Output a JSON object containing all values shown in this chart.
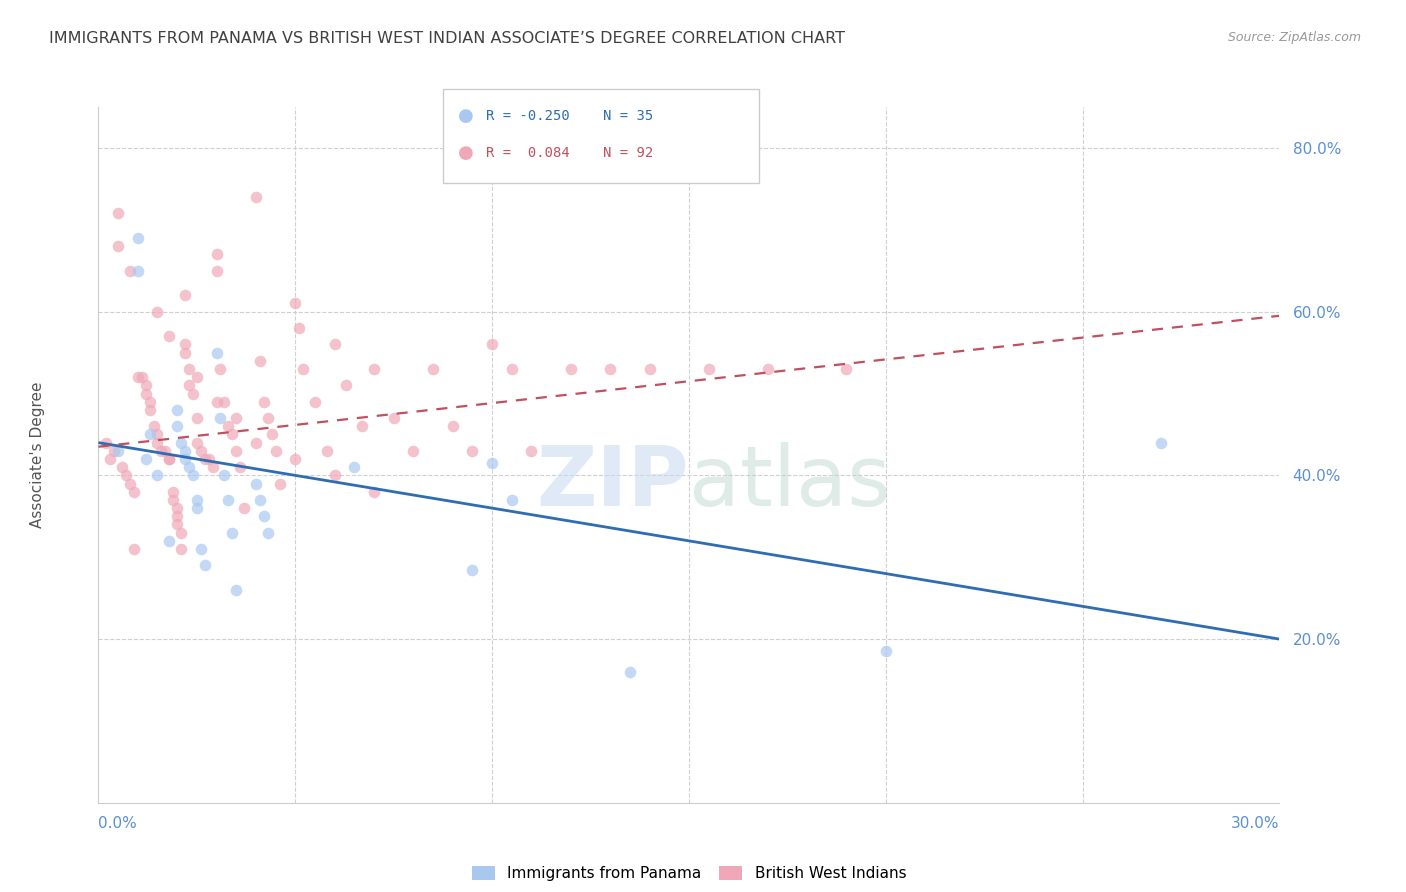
{
  "title": "IMMIGRANTS FROM PANAMA VS BRITISH WEST INDIAN ASSOCIATE’S DEGREE CORRELATION CHART",
  "source": "Source: ZipAtlas.com",
  "ylabel": "Associate's Degree",
  "xlim": [
    0.0,
    0.3
  ],
  "ylim": [
    0.0,
    0.85
  ],
  "ytick_positions_right": [
    0.2,
    0.4,
    0.6,
    0.8
  ],
  "color_panama": "#a8c8f0",
  "color_bwi": "#f0a8b8",
  "color_line_panama": "#2e6db4",
  "color_line_bwi": "#c05060",
  "color_axis_labels": "#5b8fd4",
  "scatter_alpha": 0.7,
  "scatter_size": 70,
  "panama_line_x0": 0.0,
  "panama_line_y0": 0.44,
  "panama_line_x1": 0.3,
  "panama_line_y1": 0.2,
  "bwi_line_x0": 0.0,
  "bwi_line_y0": 0.435,
  "bwi_line_x1": 0.3,
  "bwi_line_y1": 0.595,
  "panama_x": [
    0.005,
    0.01,
    0.01,
    0.012,
    0.013,
    0.015,
    0.018,
    0.02,
    0.02,
    0.021,
    0.022,
    0.022,
    0.023,
    0.024,
    0.025,
    0.025,
    0.026,
    0.027,
    0.03,
    0.031,
    0.032,
    0.033,
    0.034,
    0.035,
    0.04,
    0.041,
    0.042,
    0.043,
    0.065,
    0.095,
    0.1,
    0.105,
    0.135,
    0.2,
    0.27
  ],
  "panama_y": [
    0.43,
    0.69,
    0.65,
    0.42,
    0.45,
    0.4,
    0.32,
    0.48,
    0.46,
    0.44,
    0.43,
    0.42,
    0.41,
    0.4,
    0.37,
    0.36,
    0.31,
    0.29,
    0.55,
    0.47,
    0.4,
    0.37,
    0.33,
    0.26,
    0.39,
    0.37,
    0.35,
    0.33,
    0.41,
    0.285,
    0.415,
    0.37,
    0.16,
    0.185,
    0.44
  ],
  "bwi_x": [
    0.002,
    0.003,
    0.004,
    0.005,
    0.006,
    0.007,
    0.008,
    0.009,
    0.009,
    0.01,
    0.011,
    0.012,
    0.012,
    0.013,
    0.013,
    0.014,
    0.015,
    0.015,
    0.016,
    0.017,
    0.018,
    0.018,
    0.019,
    0.019,
    0.02,
    0.02,
    0.02,
    0.021,
    0.021,
    0.022,
    0.022,
    0.023,
    0.023,
    0.024,
    0.025,
    0.025,
    0.026,
    0.027,
    0.028,
    0.029,
    0.03,
    0.03,
    0.031,
    0.032,
    0.033,
    0.034,
    0.035,
    0.036,
    0.037,
    0.04,
    0.041,
    0.042,
    0.043,
    0.044,
    0.045,
    0.046,
    0.05,
    0.051,
    0.052,
    0.055,
    0.058,
    0.06,
    0.063,
    0.067,
    0.07,
    0.075,
    0.08,
    0.085,
    0.09,
    0.095,
    0.1,
    0.105,
    0.11,
    0.12,
    0.13,
    0.14,
    0.155,
    0.17,
    0.19,
    0.005,
    0.008,
    0.015,
    0.018,
    0.022,
    0.025,
    0.03,
    0.035,
    0.04,
    0.05,
    0.06,
    0.07
  ],
  "bwi_y": [
    0.44,
    0.42,
    0.43,
    0.72,
    0.41,
    0.4,
    0.39,
    0.38,
    0.31,
    0.52,
    0.52,
    0.51,
    0.5,
    0.49,
    0.48,
    0.46,
    0.45,
    0.44,
    0.43,
    0.43,
    0.42,
    0.42,
    0.38,
    0.37,
    0.36,
    0.35,
    0.34,
    0.33,
    0.31,
    0.62,
    0.56,
    0.53,
    0.51,
    0.5,
    0.47,
    0.44,
    0.43,
    0.42,
    0.42,
    0.41,
    0.67,
    0.65,
    0.53,
    0.49,
    0.46,
    0.45,
    0.43,
    0.41,
    0.36,
    0.74,
    0.54,
    0.49,
    0.47,
    0.45,
    0.43,
    0.39,
    0.61,
    0.58,
    0.53,
    0.49,
    0.43,
    0.56,
    0.51,
    0.46,
    0.53,
    0.47,
    0.43,
    0.53,
    0.46,
    0.43,
    0.56,
    0.53,
    0.43,
    0.53,
    0.53,
    0.53,
    0.53,
    0.53,
    0.53,
    0.68,
    0.65,
    0.6,
    0.57,
    0.55,
    0.52,
    0.49,
    0.47,
    0.44,
    0.42,
    0.4,
    0.38
  ]
}
